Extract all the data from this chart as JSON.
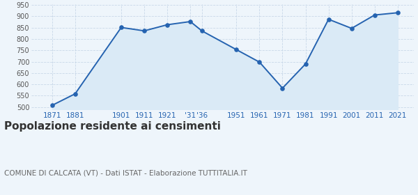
{
  "years": [
    1871,
    1881,
    1901,
    1911,
    1921,
    1931,
    1936,
    1951,
    1961,
    1971,
    1981,
    1991,
    2001,
    2011,
    2021
  ],
  "population": [
    507,
    558,
    851,
    836,
    863,
    877,
    836,
    753,
    698,
    583,
    690,
    887,
    847,
    906,
    916
  ],
  "line_color": "#2563b0",
  "fill_color": "#daeaf6",
  "marker_color": "#2563b0",
  "background_color": "#eef5fb",
  "grid_color": "#c8d8e8",
  "title": "Popolazione residente ai censimenti",
  "subtitle": "COMUNE DI CALCATA (VT) - Dati ISTAT - Elaborazione TUTTITALIA.IT",
  "ylim": [
    490,
    955
  ],
  "yticks": [
    500,
    550,
    600,
    650,
    700,
    750,
    800,
    850,
    900,
    950
  ],
  "title_fontsize": 11,
  "subtitle_fontsize": 7.5,
  "tick_color": "#2563b0",
  "axis_label_color": "#555555",
  "xlim": [
    1862,
    2028
  ],
  "xtick_positions": [
    1871,
    1881,
    1901,
    1911,
    1921,
    1931,
    1936,
    1951,
    1961,
    1971,
    1981,
    1991,
    2001,
    2011,
    2021
  ],
  "xtick_labels": [
    "1871",
    "1881",
    "1901",
    "1911",
    "1921",
    "'31",
    "'36",
    "1951",
    "1961",
    "1971",
    "1981",
    "1991",
    "2001",
    "2011",
    "2021"
  ]
}
